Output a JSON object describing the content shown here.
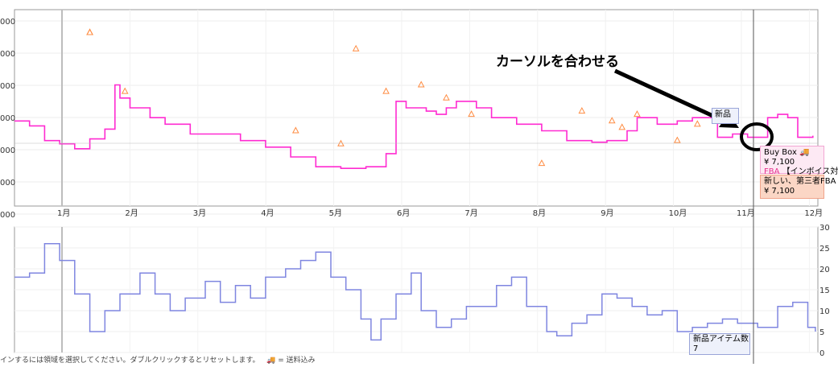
{
  "chart_data": [
    {
      "type": "line",
      "title": "",
      "xlabel": "",
      "ylabel": "",
      "x_tick_labels": [
        "1月",
        "2月",
        "3月",
        "4月",
        "5月",
        "6月",
        "7月",
        "8月",
        "9月",
        "10月",
        "11月",
        "12月"
      ],
      "y_tick_labels": [
        "000",
        "000",
        "000",
        "000",
        "000",
        "000",
        "000"
      ],
      "ylim": [
        5000,
        11000
      ],
      "grid": true,
      "series": [
        {
          "name": "Buy Box",
          "color": "#ff2bd1",
          "points": [
            [
              0.0,
              7600
            ],
            [
              0.3,
              7450
            ],
            [
              0.6,
              7000
            ],
            [
              0.9,
              6900
            ],
            [
              1.2,
              6750
            ],
            [
              1.5,
              7050
            ],
            [
              1.8,
              7350
            ],
            [
              2.0,
              8700
            ],
            [
              2.1,
              8300
            ],
            [
              2.3,
              8000
            ],
            [
              2.7,
              7700
            ],
            [
              3.0,
              7500
            ],
            [
              3.5,
              7200
            ],
            [
              4.0,
              7200
            ],
            [
              4.5,
              7000
            ],
            [
              5.0,
              6800
            ],
            [
              5.5,
              6500
            ],
            [
              6.0,
              6200
            ],
            [
              6.5,
              6150
            ],
            [
              7.0,
              6200
            ],
            [
              7.4,
              6600
            ],
            [
              7.6,
              8200
            ],
            [
              7.8,
              8000
            ],
            [
              8.2,
              7900
            ],
            [
              8.4,
              7800
            ],
            [
              8.6,
              8000
            ],
            [
              8.8,
              8200
            ],
            [
              9.2,
              8000
            ],
            [
              9.5,
              7700
            ],
            [
              10.0,
              7500
            ],
            [
              10.5,
              7300
            ],
            [
              11.0,
              7000
            ],
            [
              11.5,
              6950
            ],
            [
              11.8,
              7000
            ],
            [
              12.2,
              7300
            ],
            [
              12.4,
              7700
            ],
            [
              12.8,
              7500
            ],
            [
              13.2,
              7600
            ],
            [
              13.5,
              7700
            ],
            [
              13.9,
              7800
            ],
            [
              14.0,
              7100
            ],
            [
              14.3,
              7200
            ],
            [
              14.6,
              7100
            ],
            [
              15.0,
              7700
            ],
            [
              15.2,
              7800
            ],
            [
              15.4,
              7700
            ],
            [
              15.6,
              7100
            ],
            [
              15.9,
              7150
            ]
          ]
        },
        {
          "name": "新品",
          "color": "#ff8c42",
          "points": [
            [
              1.5,
              10300
            ],
            [
              1.5,
              10300
            ],
            [
              2.2,
              8500
            ],
            [
              5.6,
              7300
            ],
            [
              6.5,
              6900
            ],
            [
              6.8,
              9800
            ],
            [
              7.4,
              8500
            ],
            [
              8.1,
              8700
            ],
            [
              8.6,
              8300
            ],
            [
              9.1,
              7800
            ],
            [
              10.5,
              6300
            ],
            [
              11.3,
              7900
            ],
            [
              11.9,
              7600
            ],
            [
              12.1,
              7400
            ],
            [
              12.4,
              7800
            ],
            [
              13.2,
              7000
            ],
            [
              13.6,
              7500
            ],
            [
              14.1,
              7700
            ]
          ]
        }
      ]
    },
    {
      "type": "line",
      "title": "",
      "xlabel": "",
      "ylabel": "",
      "x_tick_labels": [
        "1月",
        "2月",
        "3月",
        "4月",
        "5月",
        "6月",
        "7月",
        "8月",
        "9月",
        "10月",
        "11月",
        "12月"
      ],
      "y_tick_labels": [
        "30",
        "25",
        "20",
        "15",
        "10",
        "5",
        "0"
      ],
      "ylim": [
        0,
        30
      ],
      "grid": true,
      "series": [
        {
          "name": "新品アイテム数",
          "color": "#7f86e0",
          "points": [
            [
              0.0,
              18
            ],
            [
              0.3,
              19
            ],
            [
              0.6,
              26
            ],
            [
              0.9,
              22
            ],
            [
              1.2,
              14
            ],
            [
              1.5,
              5
            ],
            [
              1.8,
              10
            ],
            [
              2.1,
              14
            ],
            [
              2.5,
              19
            ],
            [
              2.8,
              14
            ],
            [
              3.1,
              10
            ],
            [
              3.4,
              13
            ],
            [
              3.8,
              17
            ],
            [
              4.1,
              12
            ],
            [
              4.4,
              16
            ],
            [
              4.7,
              13
            ],
            [
              5.0,
              18
            ],
            [
              5.4,
              20
            ],
            [
              5.7,
              22
            ],
            [
              6.0,
              24
            ],
            [
              6.3,
              18
            ],
            [
              6.6,
              15
            ],
            [
              6.9,
              8
            ],
            [
              7.1,
              3
            ],
            [
              7.3,
              8
            ],
            [
              7.6,
              14
            ],
            [
              7.9,
              19
            ],
            [
              8.1,
              10
            ],
            [
              8.4,
              6
            ],
            [
              8.7,
              8
            ],
            [
              9.0,
              11
            ],
            [
              9.3,
              11
            ],
            [
              9.6,
              16
            ],
            [
              9.9,
              18
            ],
            [
              10.2,
              11
            ],
            [
              10.6,
              5
            ],
            [
              10.8,
              4
            ],
            [
              11.1,
              7
            ],
            [
              11.4,
              9
            ],
            [
              11.7,
              14
            ],
            [
              12.0,
              13
            ],
            [
              12.3,
              11
            ],
            [
              12.6,
              9
            ],
            [
              12.9,
              10
            ],
            [
              13.2,
              5
            ],
            [
              13.5,
              6
            ],
            [
              13.8,
              7
            ],
            [
              14.1,
              8
            ],
            [
              14.4,
              7
            ],
            [
              14.8,
              6
            ],
            [
              15.2,
              11
            ],
            [
              15.5,
              12
            ],
            [
              15.8,
              6
            ],
            [
              15.95,
              5
            ]
          ]
        }
      ]
    }
  ],
  "tooltips": {
    "buy_box": {
      "title": "Buy Box 🚚",
      "price": "¥ 7,100",
      "fba_tag": "FBA",
      "fba_text": "【インボイス対",
      "color": "#fde9f4"
    },
    "new_third_party": {
      "title": "新しい、第三者FBA",
      "price": "¥ 7,100",
      "color": "#fbd6c5"
    },
    "item_count": {
      "label": "新品アイテム数",
      "value": "7"
    },
    "cursor_label": "新品"
  },
  "annotation": {
    "text": "カーソルを合わせる"
  },
  "footer": {
    "note": "インするには領域を選択してください。ダブルクリックするとリセットします。",
    "legend_icon": "truck-icon",
    "legend_text": "= 送料込み"
  }
}
